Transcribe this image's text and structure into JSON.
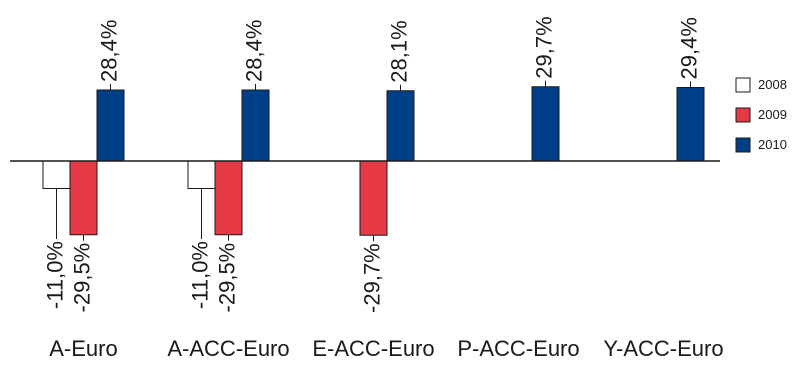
{
  "chart_data": {
    "type": "bar",
    "title": "",
    "xlabel": "",
    "ylabel": "",
    "categories": [
      "A-Euro",
      "A-ACC-Euro",
      "E-ACC-Euro",
      "P-ACC-Euro",
      "Y-ACC-Euro"
    ],
    "series": [
      {
        "name": "2008",
        "color": "#ffffff",
        "values": [
          -11.0,
          -11.0,
          null,
          null,
          null
        ],
        "labels": [
          "-11,0%",
          "-11,0%",
          "",
          "",
          ""
        ]
      },
      {
        "name": "2009",
        "color": "#e63946",
        "values": [
          -29.5,
          -29.5,
          -29.7,
          null,
          null
        ],
        "labels": [
          "-29,5%",
          "-29,5%",
          "-29,7%",
          "",
          ""
        ]
      },
      {
        "name": "2010",
        "color": "#003f87",
        "values": [
          28.4,
          28.4,
          28.1,
          29.7,
          29.4
        ],
        "labels": [
          "28,4%",
          "28,4%",
          "28,1%",
          "29,7%",
          "29,4%"
        ]
      }
    ],
    "legend_position": "right",
    "grid": false,
    "gridline_at_zero": true
  }
}
